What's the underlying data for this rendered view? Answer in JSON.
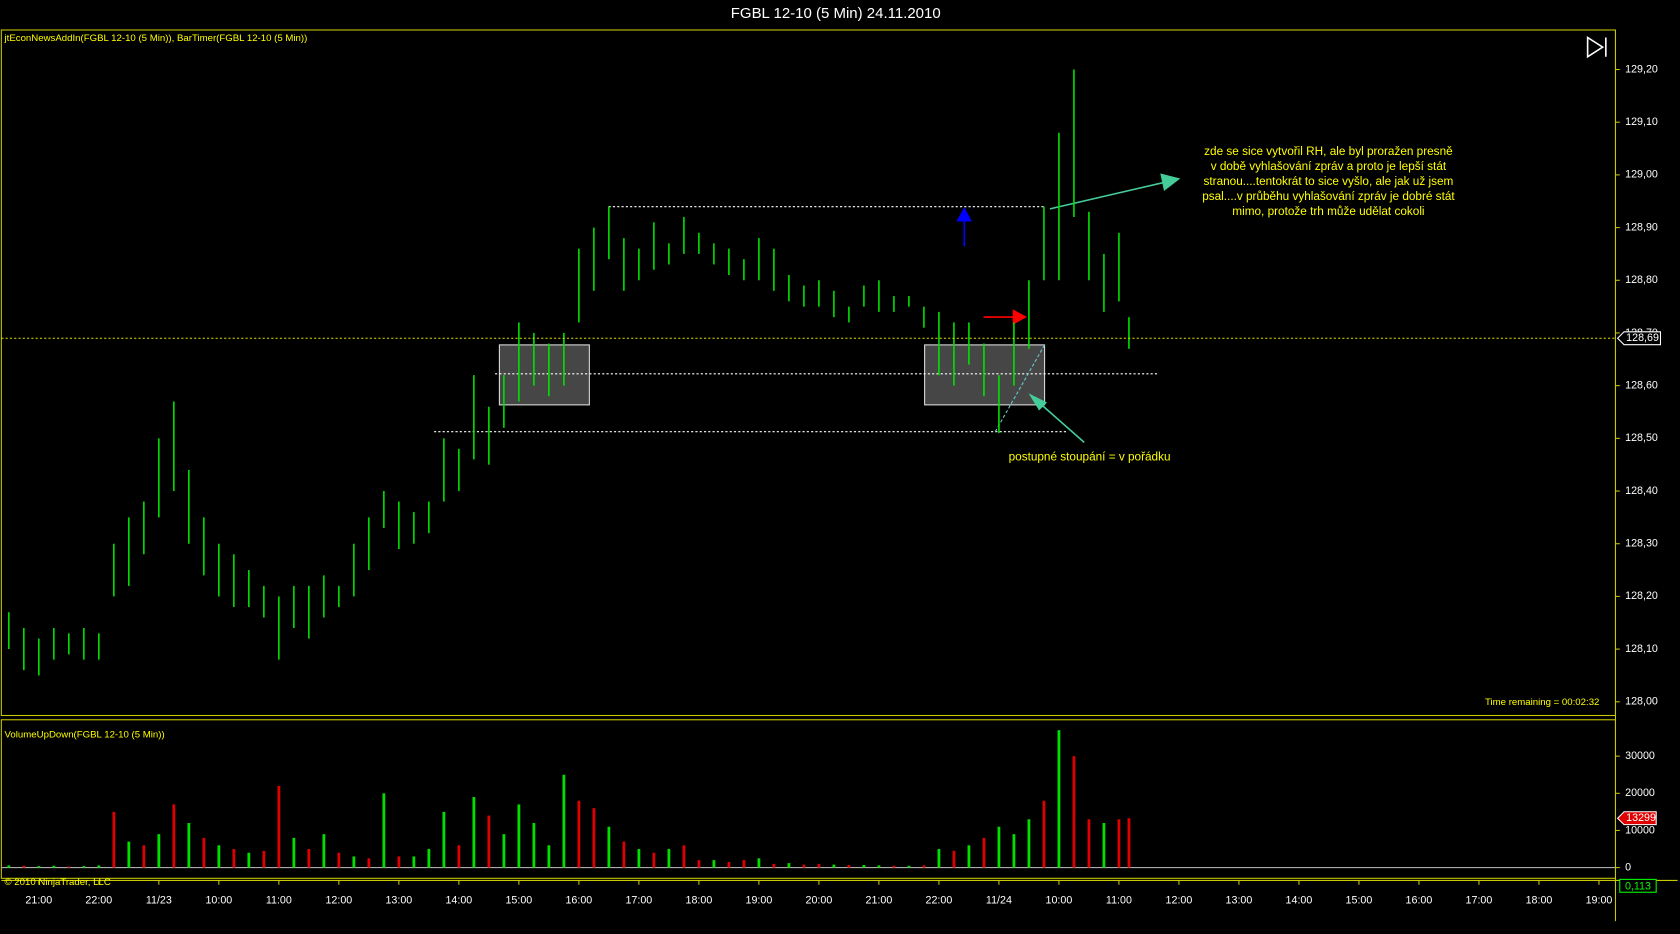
{
  "title": "FGBL 12-10 (5 Min)  24.11.2010",
  "chart_data": [
    {
      "type": "range-bar",
      "label": "jtEconNewsAddIn(FGBL 12-10 (5 Min)), BarTimer(FGBL 12-10 (5 Min))",
      "timer": "Time remaining = 00:02:32",
      "color": "#00e000",
      "x": [
        -6,
        -3,
        0,
        3,
        6,
        9,
        12,
        15,
        18,
        21,
        24,
        27,
        30,
        33,
        36,
        39,
        42,
        45,
        48,
        51,
        54,
        57,
        60,
        63,
        66,
        69,
        72,
        75,
        78,
        81,
        84,
        87,
        90,
        93,
        96,
        99,
        102,
        105,
        108,
        111,
        114,
        117,
        120,
        123,
        126,
        129,
        132,
        135,
        138,
        141,
        144,
        147,
        150,
        153,
        156,
        159,
        162,
        165,
        168,
        171,
        174,
        177,
        180,
        183,
        186,
        189,
        192,
        195,
        198,
        201,
        204,
        207,
        210,
        213,
        216,
        218
      ],
      "high": [
        128.17,
        128.14,
        128.12,
        128.14,
        128.13,
        128.14,
        128.13,
        128.3,
        128.35,
        128.38,
        128.5,
        128.57,
        128.44,
        128.35,
        128.3,
        128.28,
        128.25,
        128.22,
        128.2,
        128.22,
        128.22,
        128.24,
        128.22,
        128.3,
        128.35,
        128.4,
        128.38,
        128.36,
        128.38,
        128.5,
        128.48,
        128.62,
        128.56,
        128.62,
        128.72,
        128.7,
        128.68,
        128.7,
        128.86,
        128.9,
        128.94,
        128.88,
        128.86,
        128.91,
        128.87,
        128.92,
        128.89,
        128.87,
        128.86,
        128.84,
        128.88,
        128.86,
        128.81,
        128.79,
        128.8,
        128.78,
        128.75,
        128.79,
        128.8,
        128.77,
        128.77,
        128.75,
        128.74,
        128.72,
        128.72,
        128.68,
        128.62,
        128.72,
        128.8,
        128.94,
        129.08,
        129.2,
        128.93,
        128.85,
        128.89,
        128.73
      ],
      "low": [
        128.1,
        128.06,
        128.05,
        128.08,
        128.09,
        128.08,
        128.08,
        128.2,
        128.22,
        128.28,
        128.35,
        128.4,
        128.3,
        128.24,
        128.2,
        128.18,
        128.18,
        128.16,
        128.08,
        128.14,
        128.12,
        128.16,
        128.18,
        128.2,
        128.25,
        128.33,
        128.29,
        128.3,
        128.32,
        128.38,
        128.4,
        128.46,
        128.45,
        128.52,
        128.57,
        128.6,
        128.58,
        128.6,
        128.72,
        128.78,
        128.84,
        128.78,
        128.8,
        128.82,
        128.83,
        128.85,
        128.85,
        128.83,
        128.81,
        128.8,
        128.8,
        128.78,
        128.76,
        128.75,
        128.75,
        128.73,
        128.72,
        128.75,
        128.74,
        128.74,
        128.75,
        128.71,
        128.62,
        128.6,
        128.64,
        128.58,
        128.51,
        128.6,
        128.67,
        128.8,
        128.8,
        128.92,
        128.8,
        128.74,
        128.76,
        128.67
      ],
      "last": {
        "value": 128.69,
        "label": "128,69"
      },
      "xlim": [
        -7.5,
        315.3
      ],
      "ylim": [
        127.974,
        129.275
      ],
      "yticks": [
        {
          "value": 128.0,
          "label": "128,00"
        },
        {
          "value": 128.1,
          "label": "128,10"
        },
        {
          "value": 128.2,
          "label": "128,20"
        },
        {
          "value": 128.3,
          "label": "128,30"
        },
        {
          "value": 128.4,
          "label": "128,40"
        },
        {
          "value": 128.5,
          "label": "128,50"
        },
        {
          "value": 128.6,
          "label": "128,60"
        },
        {
          "value": 128.7,
          "label": "128,70"
        },
        {
          "value": 128.8,
          "label": "128,80"
        },
        {
          "value": 128.9,
          "label": "128,90"
        },
        {
          "value": 129.0,
          "label": "129,00"
        },
        {
          "value": 129.1,
          "label": "129,10"
        },
        {
          "value": 129.2,
          "label": "129,20"
        }
      ],
      "annotations": [
        {
          "lines": [
            "zde se sice vytvořil RH, ale byl proražen presně",
            "v době vyhlašování zpráv a proto je lepší stát",
            "stranou....tentokrát to sice vyšlo, ale jak už jsem",
            "psal....v průběhu vyhlašování zpráv je dobré stát",
            "mimo, protože trh může udělat cokoli"
          ]
        },
        {
          "lines": [
            "postupné stoupání =  v pořádku"
          ]
        }
      ]
    },
    {
      "type": "bar",
      "label": "VolumeUpDown(FGBL 12-10 (5 Min))",
      "copyright": "© 2010 NinjaTrader, LLC",
      "x_axis_tag": "0,113",
      "x": [
        -6,
        -3,
        0,
        3,
        6,
        9,
        12,
        15,
        18,
        21,
        24,
        27,
        30,
        33,
        36,
        39,
        42,
        45,
        48,
        51,
        54,
        57,
        60,
        63,
        66,
        69,
        72,
        75,
        78,
        81,
        84,
        87,
        90,
        93,
        96,
        99,
        102,
        105,
        108,
        111,
        114,
        117,
        120,
        123,
        126,
        129,
        132,
        135,
        138,
        141,
        144,
        147,
        150,
        153,
        156,
        159,
        162,
        165,
        168,
        171,
        174,
        177,
        180,
        183,
        186,
        189,
        192,
        195,
        198,
        201,
        204,
        207,
        210,
        213,
        216,
        218
      ],
      "values": [
        600,
        500,
        400,
        500,
        300,
        400,
        600,
        15000,
        7000,
        6000,
        9000,
        17000,
        12000,
        8000,
        6000,
        5000,
        4000,
        4500,
        22000,
        8000,
        5000,
        9000,
        4000,
        3000,
        2500,
        20000,
        3000,
        3000,
        5000,
        15000,
        6000,
        19000,
        14000,
        9000,
        17000,
        12000,
        6000,
        25000,
        18000,
        16000,
        11000,
        7000,
        5000,
        4000,
        5000,
        6000,
        2000,
        2000,
        1500,
        2000,
        2500,
        1000,
        1200,
        800,
        1000,
        800,
        700,
        700,
        600,
        500,
        500,
        600,
        5000,
        4500,
        6000,
        8000,
        11000,
        9000,
        13000,
        18000,
        37000,
        30000,
        13000,
        12000,
        13000,
        13299
      ],
      "colors": [
        "#00e000",
        "#e00000",
        "#00e000",
        "#00e000",
        "#e00000",
        "#00e000",
        "#00e000",
        "#e00000",
        "#00e000",
        "#e00000",
        "#00e000",
        "#e00000",
        "#00e000",
        "#e00000",
        "#00e000",
        "#e00000",
        "#00e000",
        "#e00000",
        "#e00000",
        "#00e000",
        "#e00000",
        "#00e000",
        "#e00000",
        "#00e000",
        "#e00000",
        "#00e000",
        "#e00000",
        "#00e000",
        "#00e000",
        "#00e000",
        "#e00000",
        "#00e000",
        "#e00000",
        "#00e000",
        "#00e000",
        "#00e000",
        "#00e000",
        "#00e000",
        "#e00000",
        "#e00000",
        "#00e000",
        "#e00000",
        "#00e000",
        "#e00000",
        "#00e000",
        "#e00000",
        "#e00000",
        "#00e000",
        "#e00000",
        "#e00000",
        "#00e000",
        "#e00000",
        "#00e000",
        "#e00000",
        "#e00000",
        "#00e000",
        "#e00000",
        "#00e000",
        "#00e000",
        "#e00000",
        "#00e000",
        "#e00000",
        "#00e000",
        "#e00000",
        "#00e000",
        "#e00000",
        "#00e000",
        "#00e000",
        "#00e000",
        "#e00000",
        "#00e000",
        "#e00000",
        "#e00000",
        "#00e000",
        "#e00000",
        "#e00000"
      ],
      "xlim": [
        -7.5,
        315.3
      ],
      "ylim": [
        -2885,
        39800
      ],
      "yticks": [
        0,
        10000,
        20000,
        30000
      ],
      "xticks": [
        {
          "value": 0,
          "label": "21:00"
        },
        {
          "value": 12,
          "label": "22:00"
        },
        {
          "value": 24,
          "label": "11/23"
        },
        {
          "value": 36,
          "label": "10:00"
        },
        {
          "value": 48,
          "label": "11:00"
        },
        {
          "value": 60,
          "label": "12:00"
        },
        {
          "value": 72,
          "label": "13:00"
        },
        {
          "value": 84,
          "label": "14:00"
        },
        {
          "value": 96,
          "label": "15:00"
        },
        {
          "value": 108,
          "label": "16:00"
        },
        {
          "value": 120,
          "label": "17:00"
        },
        {
          "value": 132,
          "label": "18:00"
        },
        {
          "value": 144,
          "label": "19:00"
        },
        {
          "value": 156,
          "label": "20:00"
        },
        {
          "value": 168,
          "label": "21:00"
        },
        {
          "value": 180,
          "label": "22:00"
        },
        {
          "value": 192,
          "label": "11/24"
        },
        {
          "value": 204,
          "label": "10:00"
        },
        {
          "value": 216,
          "label": "11:00"
        },
        {
          "value": 228,
          "label": "12:00"
        },
        {
          "value": 240,
          "label": "13:00"
        },
        {
          "value": 252,
          "label": "14:00"
        },
        {
          "value": 264,
          "label": "15:00"
        },
        {
          "value": 276,
          "label": "16:00"
        },
        {
          "value": 288,
          "label": "17:00"
        },
        {
          "value": 300,
          "label": "18:00"
        },
        {
          "value": 312,
          "label": "19:00"
        }
      ]
    }
  ]
}
